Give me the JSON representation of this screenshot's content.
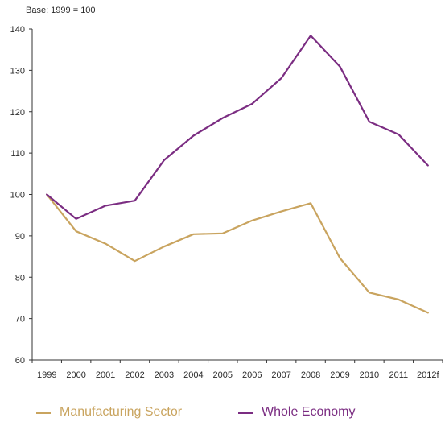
{
  "chart_data": {
    "type": "line",
    "subtitle": "Base: 1999 = 100",
    "categories": [
      "1999",
      "2000",
      "2001",
      "2002",
      "2003",
      "2004",
      "2005",
      "2006",
      "2007",
      "2008",
      "2009",
      "2010",
      "2011",
      "2012f"
    ],
    "ylim": [
      60,
      140
    ],
    "yticks": [
      60,
      70,
      80,
      90,
      100,
      110,
      120,
      130,
      140
    ],
    "grid": false,
    "legend_position": "bottom",
    "series": [
      {
        "name": "Manufacturing Sector",
        "color": "#c9a45f",
        "values": [
          100,
          91.1,
          88.1,
          83.9,
          87.4,
          90.4,
          90.6,
          93.7,
          95.9,
          97.9,
          84.6,
          76.3,
          74.6,
          71.4
        ]
      },
      {
        "name": "Whole Economy",
        "color": "#7b2d82",
        "values": [
          100,
          94.1,
          97.3,
          98.5,
          108.3,
          114.2,
          118.5,
          121.9,
          128.1,
          138.4,
          130.9,
          117.6,
          114.5,
          107.0
        ]
      }
    ]
  }
}
